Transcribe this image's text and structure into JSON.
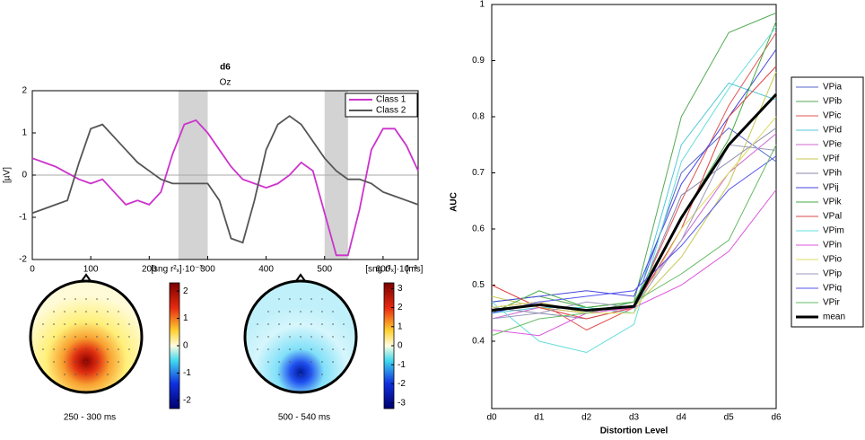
{
  "chart_data": [
    {
      "type": "line",
      "title": "d6",
      "subtitle": "Oz",
      "ylabel": "[µV]",
      "xunit": "[ms]",
      "x": [
        0,
        20,
        40,
        60,
        80,
        100,
        120,
        140,
        160,
        180,
        200,
        220,
        240,
        260,
        280,
        300,
        320,
        340,
        360,
        380,
        400,
        420,
        440,
        460,
        480,
        500,
        520,
        540,
        560,
        580,
        600,
        620,
        640,
        660
      ],
      "series": [
        {
          "name": "Class 1",
          "color": "#cc33cc",
          "values": [
            0.4,
            0.3,
            0.2,
            0.05,
            -0.1,
            -0.2,
            -0.1,
            -0.4,
            -0.7,
            -0.6,
            -0.7,
            -0.4,
            0.5,
            1.2,
            1.3,
            1.0,
            0.6,
            0.2,
            -0.1,
            -0.2,
            -0.3,
            -0.2,
            0.0,
            0.3,
            0.1,
            -0.9,
            -1.9,
            -1.9,
            -0.8,
            0.6,
            1.1,
            1.1,
            0.7,
            0.1
          ]
        },
        {
          "name": "Class 2",
          "color": "#555555",
          "values": [
            -0.9,
            -0.8,
            -0.7,
            -0.6,
            0.3,
            1.1,
            1.2,
            0.9,
            0.6,
            0.3,
            0.1,
            -0.1,
            -0.2,
            -0.2,
            -0.2,
            -0.2,
            -0.6,
            -1.5,
            -1.6,
            -0.6,
            0.6,
            1.2,
            1.4,
            1.2,
            0.8,
            0.4,
            0.1,
            -0.1,
            -0.1,
            -0.2,
            -0.4,
            -0.5,
            -0.6,
            -0.7
          ]
        }
      ],
      "highlights": [
        [
          250,
          300
        ],
        [
          500,
          540
        ]
      ],
      "xlim": [
        0,
        660
      ],
      "xticks": [
        0,
        100,
        200,
        300,
        400,
        500,
        600
      ],
      "ylim": [
        -2,
        2
      ],
      "yticks": [
        -2,
        -1,
        0,
        1,
        2
      ]
    },
    {
      "type": "topomap",
      "colorbar_label": "[sng r²ₓ]·10⁻³",
      "caption": "250 - 300 ms",
      "polarity": "positive",
      "clim": [
        -2.3,
        2.3
      ],
      "cticks": [
        -2,
        -1,
        0,
        1,
        2
      ]
    },
    {
      "type": "topomap",
      "colorbar_label": "[sng r²ₓ]·10⁻³",
      "caption": "500 - 540 ms",
      "polarity": "negative",
      "clim": [
        -3.3,
        3.3
      ],
      "cticks": [
        -3,
        -2,
        -1,
        0,
        1,
        2,
        3
      ]
    },
    {
      "type": "line",
      "xlabel": "Distortion Level",
      "ylabel": "AUC",
      "categories": [
        "d0",
        "d1",
        "d2",
        "d3",
        "d4",
        "d5",
        "d6"
      ],
      "series": [
        {
          "name": "VPia",
          "color": "#5566cc",
          "values": [
            0.46,
            0.47,
            0.45,
            0.46,
            0.7,
            0.78,
            0.72
          ]
        },
        {
          "name": "VPib",
          "color": "#55aa55",
          "values": [
            0.47,
            0.48,
            0.46,
            0.47,
            0.8,
            0.95,
            0.985
          ]
        },
        {
          "name": "VPic",
          "color": "#e05555",
          "values": [
            0.46,
            0.47,
            0.42,
            0.46,
            0.65,
            0.82,
            0.95
          ]
        },
        {
          "name": "VPid",
          "color": "#55c8d8",
          "values": [
            0.45,
            0.46,
            0.46,
            0.45,
            0.75,
            0.86,
            0.83
          ]
        },
        {
          "name": "VPie",
          "color": "#d066d0",
          "values": [
            0.44,
            0.46,
            0.45,
            0.47,
            0.58,
            0.7,
            0.77
          ]
        },
        {
          "name": "VPif",
          "color": "#c8c855",
          "values": [
            0.48,
            0.46,
            0.45,
            0.46,
            0.55,
            0.68,
            0.88
          ]
        },
        {
          "name": "VPih",
          "color": "#8888aa",
          "values": [
            0.46,
            0.45,
            0.44,
            0.46,
            0.66,
            0.72,
            0.78
          ]
        },
        {
          "name": "VPij",
          "color": "#4444dd",
          "values": [
            0.47,
            0.48,
            0.49,
            0.48,
            0.68,
            0.8,
            0.92
          ]
        },
        {
          "name": "VPik",
          "color": "#44aa44",
          "values": [
            0.45,
            0.49,
            0.46,
            0.47,
            0.62,
            0.76,
            0.97
          ]
        },
        {
          "name": "VPal",
          "color": "#dd4444",
          "values": [
            0.5,
            0.46,
            0.44,
            0.46,
            0.6,
            0.8,
            0.89
          ]
        },
        {
          "name": "VPim",
          "color": "#66dddd",
          "values": [
            0.47,
            0.4,
            0.38,
            0.43,
            0.72,
            0.85,
            0.96
          ]
        },
        {
          "name": "VPin",
          "color": "#dd55dd",
          "values": [
            0.42,
            0.41,
            0.45,
            0.46,
            0.5,
            0.56,
            0.67
          ]
        },
        {
          "name": "VPio",
          "color": "#dddd66",
          "values": [
            0.46,
            0.47,
            0.45,
            0.45,
            0.6,
            0.7,
            0.8
          ]
        },
        {
          "name": "VPip",
          "color": "#9999bb",
          "values": [
            0.44,
            0.45,
            0.47,
            0.46,
            0.58,
            0.75,
            0.74
          ]
        },
        {
          "name": "VPiq",
          "color": "#5555ee",
          "values": [
            0.45,
            0.47,
            0.48,
            0.49,
            0.57,
            0.67,
            0.73
          ]
        },
        {
          "name": "VPir",
          "color": "#66bb66",
          "values": [
            0.41,
            0.44,
            0.45,
            0.47,
            0.52,
            0.58,
            0.75
          ]
        },
        {
          "name": "mean",
          "color": "#000000",
          "width": 3,
          "values": [
            0.455,
            0.465,
            0.455,
            0.462,
            0.62,
            0.75,
            0.84
          ]
        }
      ],
      "ylim": [
        0.28,
        1
      ],
      "yticks": [
        0.4,
        0.5,
        0.6,
        0.7,
        0.8,
        0.9,
        1
      ]
    }
  ]
}
